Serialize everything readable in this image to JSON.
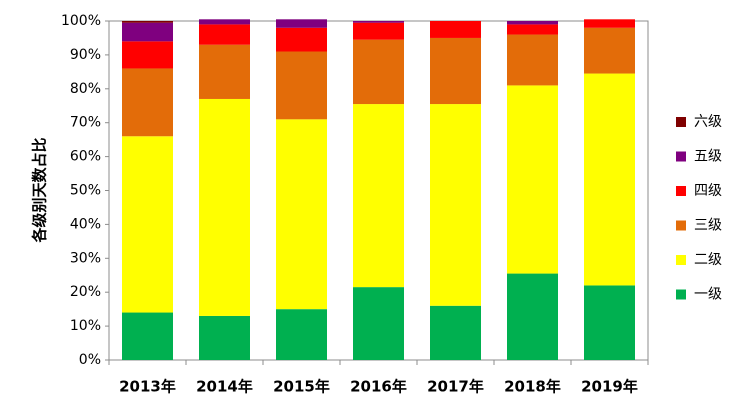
{
  "chart_data": {
    "type": "bar",
    "stacked": true,
    "percent": true,
    "categories": [
      "2013年",
      "2014年",
      "2015年",
      "2016年",
      "2017年",
      "2018年",
      "2019年"
    ],
    "series": [
      {
        "name": "一级",
        "color": "#00b050",
        "values": [
          14,
          13,
          15,
          21.5,
          16,
          25.5,
          22
        ]
      },
      {
        "name": "二级",
        "color": "#ffff00",
        "values": [
          52,
          64,
          56,
          54,
          59.5,
          55.5,
          62.5
        ]
      },
      {
        "name": "三级",
        "color": "#e36c09",
        "values": [
          20,
          16,
          20,
          19,
          19.5,
          15,
          13.5
        ]
      },
      {
        "name": "四级",
        "color": "#ff0000",
        "values": [
          8,
          6,
          7,
          5,
          5,
          3,
          2.5
        ]
      },
      {
        "name": "五级",
        "color": "#7f007f",
        "values": [
          5.5,
          1.5,
          2.5,
          0.5,
          0,
          1,
          0
        ]
      },
      {
        "name": "六级",
        "color": "#7f0000",
        "values": [
          0.5,
          0,
          0,
          0,
          0,
          0,
          0
        ]
      }
    ],
    "yticks": [
      "0%",
      "10%",
      "20%",
      "30%",
      "40%",
      "50%",
      "60%",
      "70%",
      "80%",
      "90%",
      "100%"
    ],
    "ylim": [
      0,
      100
    ],
    "xlabel": "",
    "ylabel": "各级别天数占比",
    "grid": false,
    "legend_position": "right"
  }
}
